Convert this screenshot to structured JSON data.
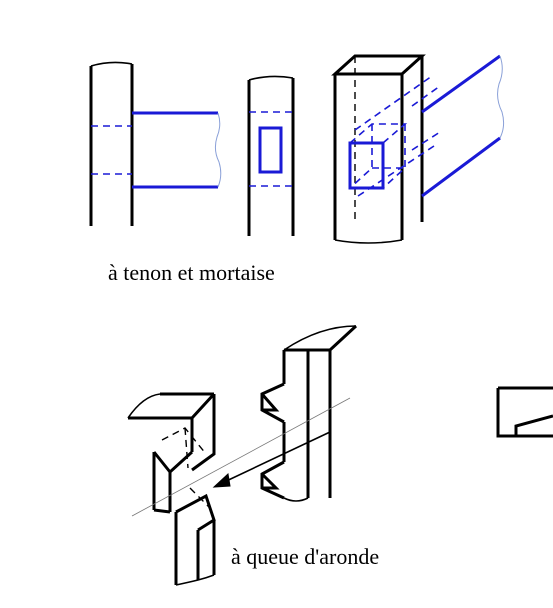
{
  "figure": {
    "caption_tenon": "à tenon et mortaise",
    "caption_queue": "à queue d'aronde"
  },
  "colors": {
    "ink": "#000000",
    "accent_blue": "#1a1ad6",
    "background": "#ffffff"
  }
}
